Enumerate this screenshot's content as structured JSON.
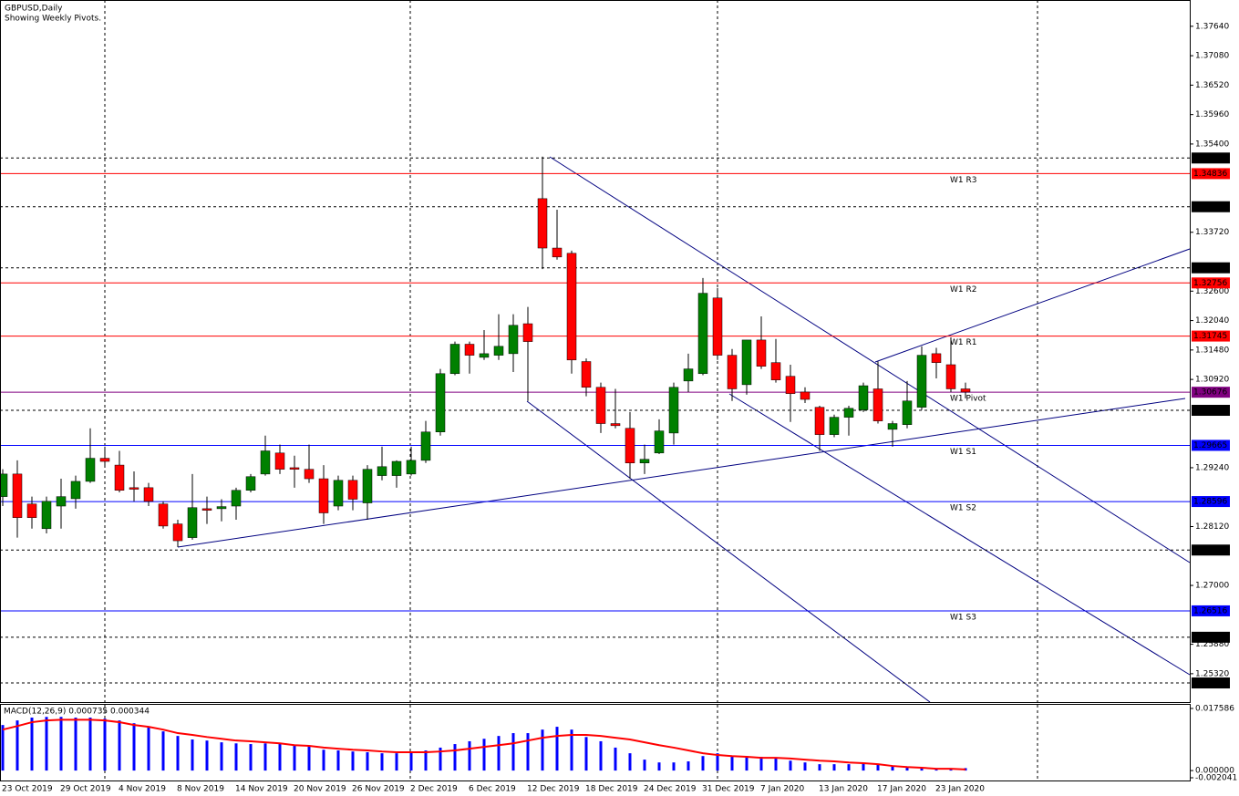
{
  "chart_data": [
    {
      "type": "candlestick",
      "title": "GBPUSD,Daily",
      "subtitle": "Showing Weekly Pivots.",
      "up_color": "#008000",
      "down_color": "#ff0000",
      "categories": [
        "23 Oct 2019",
        null,
        null,
        null,
        "29 Oct 2019",
        null,
        null,
        null,
        "4 Nov 2019",
        null,
        null,
        null,
        "8 Nov 2019",
        null,
        null,
        null,
        "14 Nov 2019",
        null,
        null,
        null,
        "20 Nov 2019",
        null,
        null,
        null,
        "26 Nov 2019",
        null,
        null,
        null,
        "2 Dec 2019",
        null,
        null,
        null,
        "6 Dec 2019",
        null,
        null,
        null,
        "12 Dec 2019",
        null,
        null,
        null,
        "18 Dec 2019",
        null,
        null,
        null,
        "24 Dec 2019",
        null,
        null,
        null,
        "31 Dec 2019",
        null,
        null,
        null,
        "7 Jan 2020",
        null,
        null,
        null,
        "13 Jan 2020",
        null,
        null,
        null,
        "17 Jan 2020",
        null,
        null,
        null,
        "23 Jan 2020",
        null,
        null
      ],
      "open": [
        1.2869,
        1.2912,
        1.2855,
        1.2808,
        1.2851,
        1.2865,
        1.2898,
        1.2942,
        1.2929,
        1.2886,
        1.2886,
        1.2855,
        1.2817,
        1.2791,
        1.2846,
        1.2846,
        1.2851,
        1.2881,
        1.2912,
        1.2952,
        1.2924,
        1.2921,
        1.2903,
        1.2851,
        1.29,
        1.2857,
        1.2909,
        1.2909,
        1.2912,
        1.2938,
        1.2992,
        1.3103,
        1.3159,
        1.3134,
        1.3138,
        1.3141,
        1.3198,
        1.3436,
        1.3342,
        1.3332,
        1.3126,
        1.3077,
        1.3008,
        1.2999,
        1.2933,
        1.2952,
        1.299,
        1.3089,
        1.3103,
        1.3247,
        1.3138,
        1.3082,
        1.3167,
        1.3124,
        1.3098,
        1.3068,
        1.3039,
        1.2987,
        1.302,
        1.3034,
        1.3074,
        1.2997,
        1.3006,
        1.3039,
        1.3141,
        1.312,
        1.3074
      ],
      "high": [
        1.2921,
        1.2938,
        1.2869,
        1.2869,
        1.2903,
        1.2909,
        1.2999,
        1.2964,
        1.2956,
        1.2917,
        1.2895,
        1.286,
        1.2825,
        1.2912,
        1.2869,
        1.2864,
        1.2886,
        1.2912,
        1.2985,
        1.2968,
        1.2947,
        1.2968,
        1.2929,
        1.2909,
        1.2909,
        1.2929,
        1.2964,
        1.2938,
        1.2964,
        1.3013,
        1.3112,
        1.3164,
        1.3164,
        1.3186,
        1.3216,
        1.3216,
        1.323,
        1.3516,
        1.3415,
        1.3337,
        1.3132,
        1.3086,
        1.3074,
        1.303,
        1.2968,
        1.3016,
        1.3086,
        1.3141,
        1.3285,
        1.3266,
        1.315,
        1.3167,
        1.3212,
        1.3169,
        1.312,
        1.3077,
        1.3042,
        1.3025,
        1.3042,
        1.3086,
        1.3126,
        1.3013,
        1.3089,
        1.3155,
        1.3152,
        1.3172,
        1.3086
      ],
      "low": [
        1.2851,
        1.2791,
        1.2808,
        1.2799,
        1.2808,
        1.2846,
        1.2895,
        1.2929,
        1.2877,
        1.286,
        1.2851,
        1.2808,
        1.2773,
        1.2787,
        1.2817,
        1.2822,
        1.2825,
        1.2877,
        1.2909,
        1.2912,
        1.2886,
        1.2895,
        1.2817,
        1.2843,
        1.2843,
        1.2825,
        1.29,
        1.2886,
        1.2909,
        1.2933,
        1.2985,
        1.31,
        1.3103,
        1.3129,
        1.3129,
        1.3106,
        1.3051,
        1.3302,
        1.332,
        1.3103,
        1.306,
        1.299,
        1.2999,
        1.2903,
        1.2912,
        1.295,
        1.2968,
        1.3068,
        1.31,
        1.3129,
        1.3051,
        1.3063,
        1.3112,
        1.3086,
        1.3011,
        1.3047,
        1.2956,
        1.2982,
        1.2985,
        1.303,
        1.3008,
        1.2964,
        1.2999,
        1.3034,
        1.3094,
        1.3068,
        1.3056
      ],
      "close": [
        1.2912,
        1.2829,
        1.2829,
        1.286,
        1.2869,
        1.2898,
        1.2942,
        1.2936,
        1.2881,
        1.2883,
        1.286,
        1.2813,
        1.2785,
        1.2848,
        1.2843,
        1.285,
        1.2881,
        1.2907,
        1.2956,
        1.2921,
        1.2921,
        1.2903,
        1.2838,
        1.29,
        1.2864,
        1.2921,
        1.2926,
        1.2936,
        1.2938,
        1.2992,
        1.3103,
        1.3159,
        1.3138,
        1.3141,
        1.3155,
        1.3195,
        1.3164,
        1.3342,
        1.3325,
        1.3129,
        1.3077,
        1.3008,
        1.3004,
        1.2933,
        1.294,
        1.2994,
        1.3077,
        1.3112,
        1.3256,
        1.3138,
        1.3074,
        1.3167,
        1.3117,
        1.3091,
        1.3065,
        1.3054,
        1.2987,
        1.302,
        1.3037,
        1.308,
        1.3013,
        1.3008,
        1.3051,
        1.3138,
        1.3124,
        1.3074,
        1.3068
      ],
      "ylim": [
        1.2478,
        1.3814
      ],
      "yticks": [
        {
          "value": 1.3764,
          "label": "1.37640"
        },
        {
          "value": 1.3708,
          "label": "1.37080"
        },
        {
          "value": 1.3652,
          "label": "1.36520"
        },
        {
          "value": 1.3596,
          "label": "1.35960"
        },
        {
          "value": 1.354,
          "label": "1.35400"
        },
        {
          "value": 1.3372,
          "label": "1.33720"
        },
        {
          "value": 1.326,
          "label": "1.32600"
        },
        {
          "value": 1.3204,
          "label": "1.32040"
        },
        {
          "value": 1.3148,
          "label": "1.31480"
        },
        {
          "value": 1.3092,
          "label": "1.30920"
        },
        {
          "value": 1.2924,
          "label": "1.29240"
        },
        {
          "value": 1.2812,
          "label": "1.28120"
        },
        {
          "value": 1.27,
          "label": "1.27000"
        },
        {
          "value": 1.2588,
          "label": "1.25880"
        },
        {
          "value": 1.2532,
          "label": "1.25320"
        }
      ],
      "levels": [
        {
          "value": 1.35133,
          "color": "#000000",
          "dashed": true
        },
        {
          "value": 1.34206,
          "color": "#000000",
          "dashed": true
        },
        {
          "value": 1.33044,
          "color": "#000000",
          "dashed": true
        },
        {
          "value": 1.30332,
          "color": "#000000",
          "dashed": true
        },
        {
          "value": 1.27673,
          "color": "#000000",
          "dashed": true
        },
        {
          "value": 1.26014,
          "color": "#000000",
          "dashed": true
        },
        {
          "value": 1.25144,
          "color": "#000000",
          "dashed": true
        },
        {
          "value": 1.34836,
          "color": "#ff0000",
          "name": "W1 R3"
        },
        {
          "value": 1.32756,
          "color": "#ff0000",
          "name": "W1 R2"
        },
        {
          "value": 1.31745,
          "color": "#ff0000",
          "name": "W1 R1"
        },
        {
          "value": 1.30676,
          "color": "#800080",
          "name": "W1 Pivot"
        },
        {
          "value": 1.29665,
          "color": "#0000ff",
          "name": "W1 S1"
        },
        {
          "value": 1.28596,
          "color": "#0000ff",
          "name": "W1 S2"
        },
        {
          "value": 1.26516,
          "color": "#0000ff",
          "name": "W1 S3"
        }
      ]
    },
    {
      "type": "macd",
      "title": "MACD(12,26,9) 0.000735 0.000344",
      "color": "#0000ff",
      "values": [
        0.0129,
        0.0142,
        0.015,
        0.0152,
        0.0152,
        0.015,
        0.015,
        0.0147,
        0.0142,
        0.0134,
        0.0124,
        0.0111,
        0.0098,
        0.0088,
        0.0085,
        0.008,
        0.0077,
        0.0075,
        0.0077,
        0.0077,
        0.0072,
        0.007,
        0.0059,
        0.0057,
        0.0054,
        0.0052,
        0.0049,
        0.0049,
        0.0052,
        0.0057,
        0.0065,
        0.0075,
        0.0083,
        0.009,
        0.0098,
        0.0106,
        0.0106,
        0.0116,
        0.0124,
        0.0116,
        0.0095,
        0.0083,
        0.0065,
        0.0049,
        0.0031,
        0.0023,
        0.0023,
        0.0026,
        0.0041,
        0.0049,
        0.0041,
        0.0041,
        0.0039,
        0.0034,
        0.0028,
        0.0023,
        0.0018,
        0.0018,
        0.0018,
        0.0021,
        0.0018,
        0.0013,
        0.001,
        0.0008,
        0.0005,
        0.0005,
        0.0007
      ],
      "signal": {
        "color": "#ff0000",
        "values": [
          0.0116,
          0.0126,
          0.0137,
          0.0142,
          0.0144,
          0.0144,
          0.0144,
          0.0142,
          0.0137,
          0.0129,
          0.0124,
          0.0116,
          0.0106,
          0.0101,
          0.0095,
          0.009,
          0.0085,
          0.0083,
          0.008,
          0.0077,
          0.0072,
          0.007,
          0.0065,
          0.0062,
          0.0059,
          0.0057,
          0.0054,
          0.0052,
          0.0052,
          0.0052,
          0.0054,
          0.0057,
          0.0062,
          0.0067,
          0.0072,
          0.0077,
          0.0085,
          0.0093,
          0.0098,
          0.0101,
          0.0101,
          0.0098,
          0.0093,
          0.0088,
          0.008,
          0.0072,
          0.0065,
          0.0057,
          0.0049,
          0.0044,
          0.0041,
          0.0039,
          0.0036,
          0.0036,
          0.0034,
          0.0031,
          0.0028,
          0.0026,
          0.0023,
          0.0021,
          0.0018,
          0.0013,
          0.001,
          0.0008,
          0.0005,
          0.0005,
          0.0003
        ]
      },
      "ylim": [
        -0.002041,
        0.017586
      ],
      "yticks": [
        0.017586,
        {
          "value": 0,
          "label": "0.000000"
        },
        -0.002041
      ]
    }
  ]
}
